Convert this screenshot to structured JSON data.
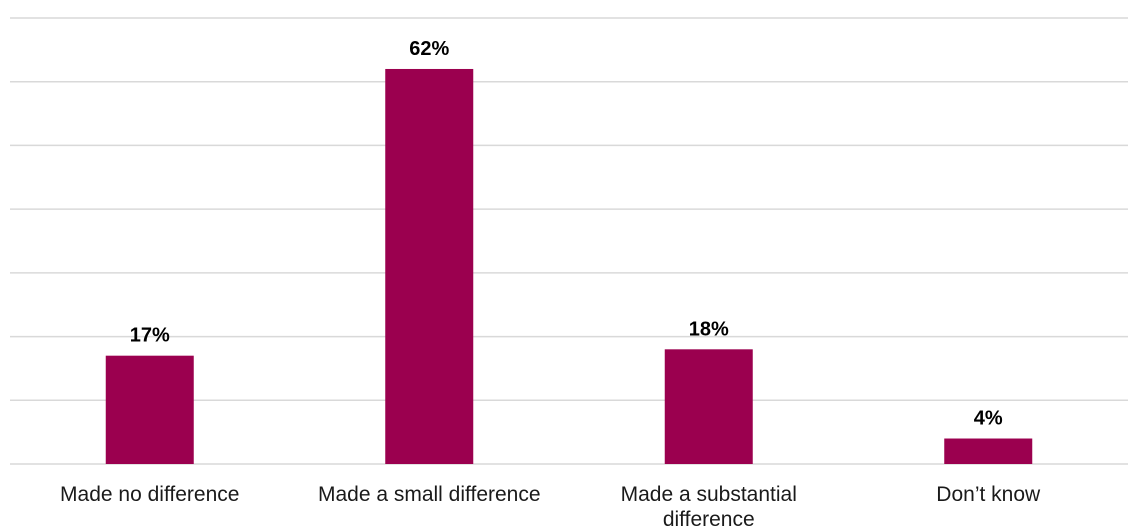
{
  "chart_data": {
    "type": "bar",
    "categories": [
      [
        "Made no difference"
      ],
      [
        "Made a small difference"
      ],
      [
        "Made a substantial",
        "difference"
      ],
      [
        "Don’t know"
      ]
    ],
    "values": [
      17,
      62,
      18,
      4
    ],
    "value_labels": [
      "17%",
      "62%",
      "18%",
      "4%"
    ],
    "ylim": [
      0,
      70
    ],
    "grid": true,
    "bar_color": "#9b004f",
    "grid_color": "#d9d9d9"
  }
}
